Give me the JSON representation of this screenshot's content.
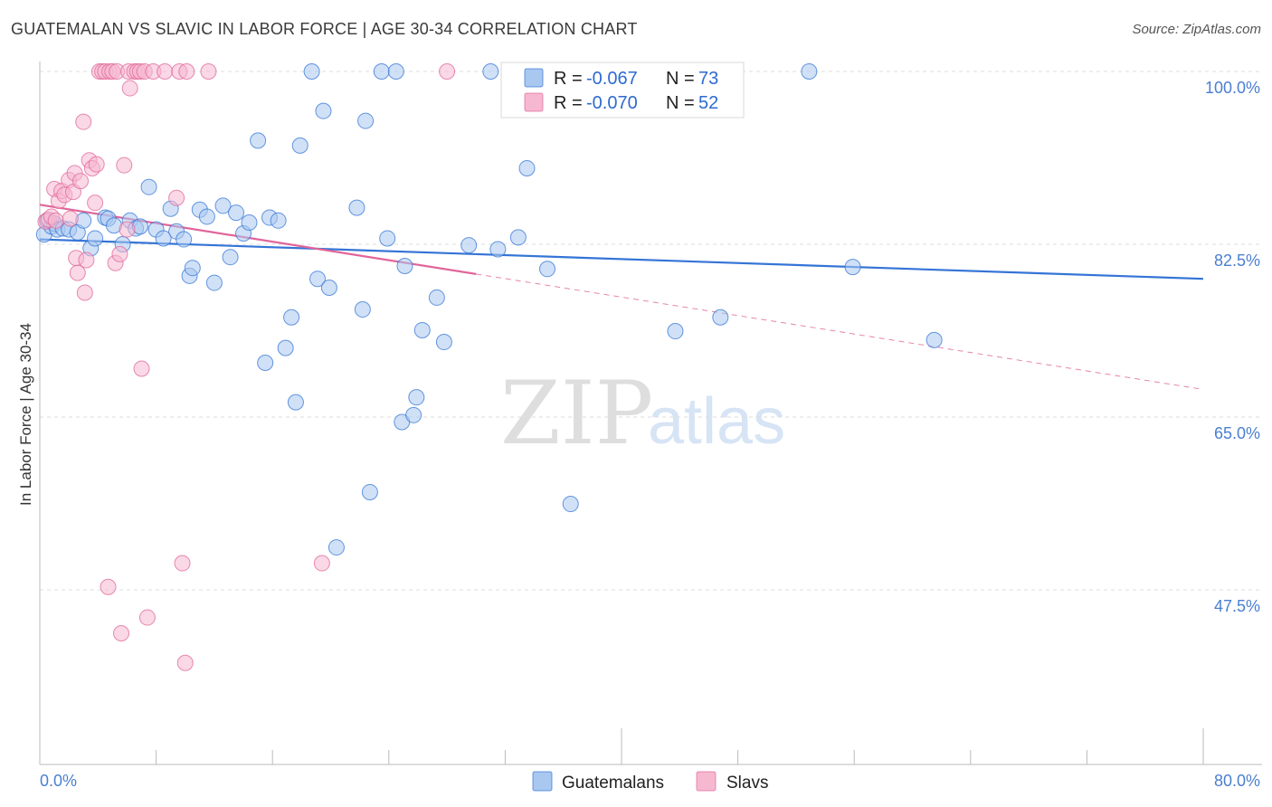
{
  "title": "GUATEMALAN VS SLAVIC IN LABOR FORCE | AGE 30-34 CORRELATION CHART",
  "source": "Source: ZipAtlas.com",
  "watermark": {
    "part1": "ZIP",
    "part2": "atlas"
  },
  "colors": {
    "blue": "#3474d6",
    "blue_fill": "#a9c8f0",
    "pink": "#e0659a",
    "pink_fill": "#f6b8cf",
    "grid": "#dddddd"
  },
  "legend": {
    "series": [
      {
        "r_label": "R =",
        "r_value": "-0.067",
        "n_label": "N =",
        "n_value": "73"
      },
      {
        "r_label": "R =",
        "r_value": "-0.070",
        "n_label": "N =",
        "n_value": "52"
      }
    ]
  },
  "chart_data": {
    "type": "scatter",
    "title": "GUATEMALAN VS SLAVIC IN LABOR FORCE | AGE 30-34 CORRELATION CHART",
    "xlabel": "",
    "ylabel": "In Labor Force | Age 30-34",
    "xlim": [
      0,
      80
    ],
    "ylim": [
      29.0,
      101.5
    ],
    "x_tick_labels": [
      "0.0%",
      "80.0%"
    ],
    "y_ticks": [
      47.5,
      65.0,
      82.5,
      100.0
    ],
    "y_tick_labels": [
      "47.5%",
      "65.0%",
      "82.5%",
      "100.0%"
    ],
    "legend_position": "top-center",
    "series": [
      {
        "name": "Guatemalans",
        "color": "#3474d6",
        "trend": {
          "x0": 0,
          "y0": 83.0,
          "x1": 80,
          "y1": 79.0,
          "dashed_from": 80
        },
        "points": [
          [
            0.3,
            83.5
          ],
          [
            0.5,
            84.9
          ],
          [
            0.8,
            84.3
          ],
          [
            1.0,
            84.6
          ],
          [
            1.2,
            84.0
          ],
          [
            1.6,
            84.1
          ],
          [
            2.0,
            84.0
          ],
          [
            2.6,
            83.7
          ],
          [
            3.0,
            84.9
          ],
          [
            3.5,
            82.1
          ],
          [
            3.8,
            83.1
          ],
          [
            4.5,
            85.2
          ],
          [
            4.7,
            85.1
          ],
          [
            5.1,
            84.4
          ],
          [
            5.7,
            82.5
          ],
          [
            6.2,
            84.9
          ],
          [
            6.6,
            84.1
          ],
          [
            6.9,
            84.3
          ],
          [
            7.5,
            88.3
          ],
          [
            8.0,
            84.0
          ],
          [
            8.5,
            83.1
          ],
          [
            9.0,
            86.1
          ],
          [
            9.4,
            83.8
          ],
          [
            9.9,
            83.0
          ],
          [
            10.3,
            79.3
          ],
          [
            10.5,
            80.1
          ],
          [
            11.0,
            86.0
          ],
          [
            11.5,
            85.3
          ],
          [
            12.0,
            78.6
          ],
          [
            12.6,
            86.4
          ],
          [
            13.1,
            81.2
          ],
          [
            13.5,
            85.7
          ],
          [
            14.0,
            83.6
          ],
          [
            14.4,
            84.7
          ],
          [
            15.0,
            93.0
          ],
          [
            15.5,
            70.5
          ],
          [
            15.8,
            85.2
          ],
          [
            16.4,
            84.9
          ],
          [
            16.9,
            72.0
          ],
          [
            17.3,
            75.1
          ],
          [
            17.6,
            66.5
          ],
          [
            17.9,
            92.5
          ],
          [
            18.7,
            100.0
          ],
          [
            19.1,
            79.0
          ],
          [
            19.5,
            96.0
          ],
          [
            19.9,
            78.1
          ],
          [
            20.4,
            51.8
          ],
          [
            21.8,
            86.2
          ],
          [
            22.2,
            75.9
          ],
          [
            22.4,
            95.0
          ],
          [
            22.7,
            57.4
          ],
          [
            23.5,
            100.0
          ],
          [
            23.9,
            83.1
          ],
          [
            24.5,
            100.0
          ],
          [
            24.9,
            64.5
          ],
          [
            25.1,
            80.3
          ],
          [
            25.7,
            65.2
          ],
          [
            25.9,
            67.0
          ],
          [
            26.3,
            73.8
          ],
          [
            27.3,
            77.1
          ],
          [
            27.8,
            72.6
          ],
          [
            29.5,
            82.4
          ],
          [
            31.0,
            100.0
          ],
          [
            31.5,
            82.0
          ],
          [
            32.9,
            83.2
          ],
          [
            33.5,
            90.2
          ],
          [
            34.9,
            80.0
          ],
          [
            36.5,
            56.2
          ],
          [
            43.7,
            73.7
          ],
          [
            46.8,
            75.1
          ],
          [
            52.9,
            100.0
          ],
          [
            55.9,
            80.2
          ],
          [
            61.5,
            72.8
          ]
        ]
      },
      {
        "name": "Slavs",
        "color": "#e0659a",
        "trend": {
          "x0": 0,
          "y0": 86.5,
          "x1": 80,
          "y1": 67.8,
          "dashed_from": 30
        },
        "points": [
          [
            0.4,
            84.8
          ],
          [
            0.6,
            85.0
          ],
          [
            0.8,
            85.3
          ],
          [
            1.0,
            88.1
          ],
          [
            1.1,
            84.9
          ],
          [
            1.3,
            86.9
          ],
          [
            1.5,
            87.9
          ],
          [
            1.7,
            87.5
          ],
          [
            2.0,
            89.0
          ],
          [
            2.1,
            85.1
          ],
          [
            2.3,
            87.8
          ],
          [
            2.4,
            89.7
          ],
          [
            2.5,
            81.1
          ],
          [
            2.6,
            79.6
          ],
          [
            2.8,
            88.9
          ],
          [
            3.0,
            94.9
          ],
          [
            3.1,
            77.6
          ],
          [
            3.2,
            80.9
          ],
          [
            3.4,
            91.0
          ],
          [
            3.6,
            90.2
          ],
          [
            3.8,
            86.7
          ],
          [
            3.9,
            90.6
          ],
          [
            4.1,
            100.0
          ],
          [
            4.3,
            100.0
          ],
          [
            4.5,
            100.0
          ],
          [
            4.7,
            47.8
          ],
          [
            4.8,
            100.0
          ],
          [
            5.0,
            100.0
          ],
          [
            5.2,
            80.6
          ],
          [
            5.3,
            100.0
          ],
          [
            5.5,
            81.5
          ],
          [
            5.6,
            43.1
          ],
          [
            5.8,
            90.5
          ],
          [
            6.0,
            84.0
          ],
          [
            6.1,
            100.0
          ],
          [
            6.2,
            98.3
          ],
          [
            6.5,
            100.0
          ],
          [
            6.7,
            100.0
          ],
          [
            6.9,
            100.0
          ],
          [
            7.0,
            69.9
          ],
          [
            7.2,
            100.0
          ],
          [
            7.4,
            44.7
          ],
          [
            7.8,
            100.0
          ],
          [
            8.6,
            100.0
          ],
          [
            9.4,
            87.2
          ],
          [
            9.6,
            100.0
          ],
          [
            9.8,
            50.2
          ],
          [
            10.0,
            40.1
          ],
          [
            10.1,
            100.0
          ],
          [
            11.6,
            100.0
          ],
          [
            19.4,
            50.2
          ],
          [
            28.0,
            100.0
          ]
        ]
      }
    ]
  }
}
